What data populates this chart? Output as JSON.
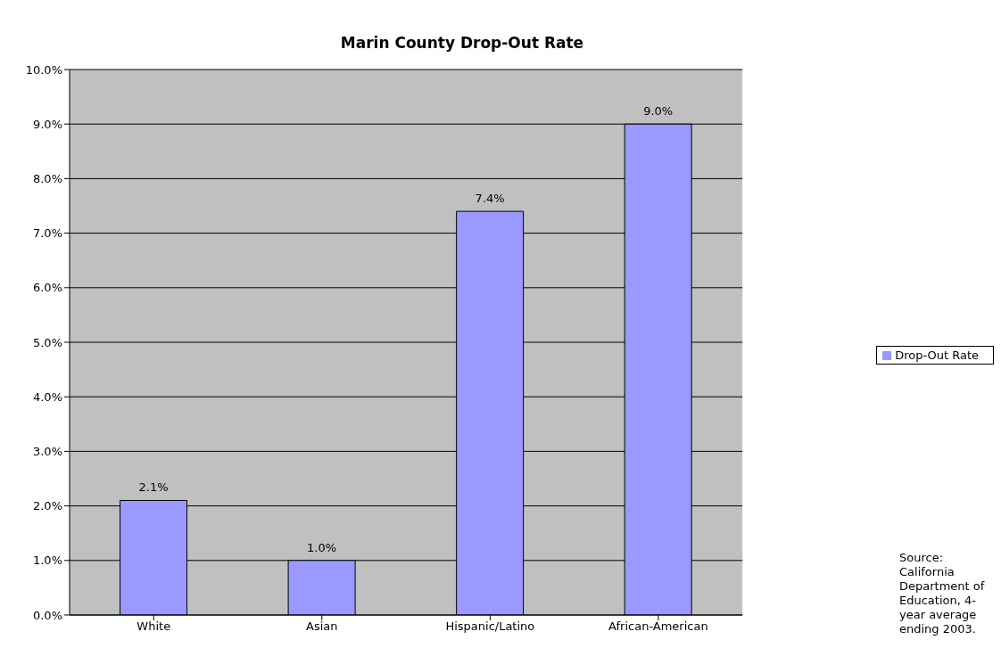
{
  "chart_data": {
    "type": "bar",
    "title": "Marin County Drop-Out Rate",
    "categories": [
      "White",
      "Asian",
      "Hispanic/Latino",
      "African-American"
    ],
    "series": [
      {
        "name": "Drop-Out Rate",
        "color": "#9999ff",
        "values": [
          2.1,
          1.0,
          7.4,
          9.0
        ],
        "value_labels": [
          "2.1%",
          "1.0%",
          "7.4%",
          "9.0%"
        ]
      }
    ],
    "ylim": [
      0,
      10
    ],
    "yticks": [
      {
        "value": 0,
        "label": "0.0%"
      },
      {
        "value": 1,
        "label": "1.0%"
      },
      {
        "value": 2,
        "label": "2.0%"
      },
      {
        "value": 3,
        "label": "3.0%"
      },
      {
        "value": 4,
        "label": "4.0%"
      },
      {
        "value": 5,
        "label": "5.0%"
      },
      {
        "value": 6,
        "label": "6.0%"
      },
      {
        "value": 7,
        "label": "7.0%"
      },
      {
        "value": 8,
        "label": "8.0%"
      },
      {
        "value": 9,
        "label": "9.0%"
      },
      {
        "value": 10,
        "label": "10.0%"
      }
    ],
    "grid": "y",
    "legend": "right",
    "annotations": [
      "Source: California Department of Education, 4-year average ending 2003."
    ]
  }
}
